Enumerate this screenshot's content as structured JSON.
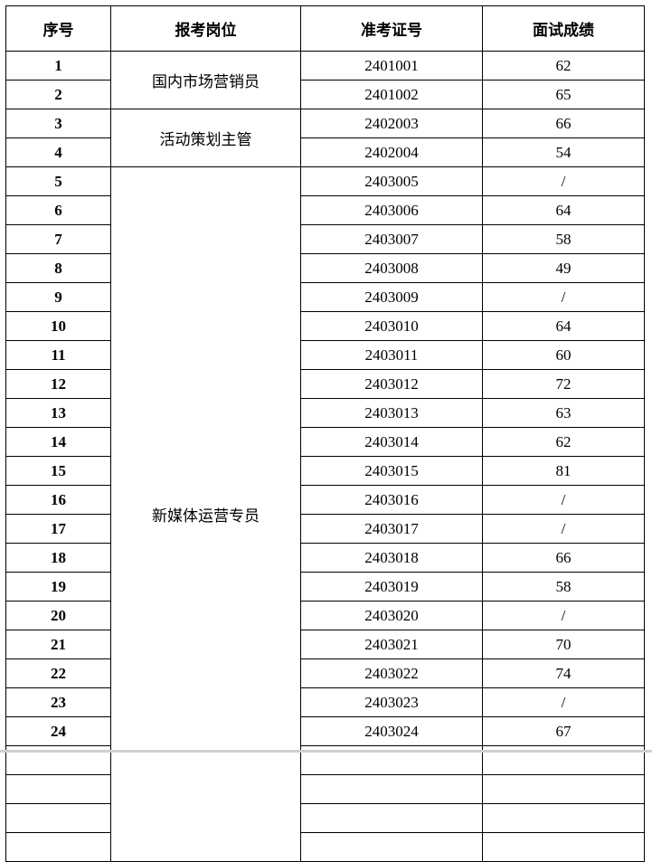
{
  "headers": [
    "序号",
    "报考岗位",
    "准考证号",
    "面试成绩"
  ],
  "positions": [
    {
      "name": "国内市场营销员",
      "rows": 2
    },
    {
      "name": "活动策划主管",
      "rows": 2
    },
    {
      "name": "新媒体运营专员",
      "rows": 20
    }
  ],
  "rows": [
    {
      "no": "1",
      "id": "2401001",
      "score": "62"
    },
    {
      "no": "2",
      "id": "2401002",
      "score": "65"
    },
    {
      "no": "3",
      "id": "2402003",
      "score": "66"
    },
    {
      "no": "4",
      "id": "2402004",
      "score": "54"
    },
    {
      "no": "5",
      "id": "2403005",
      "score": "/"
    },
    {
      "no": "6",
      "id": "2403006",
      "score": "64"
    },
    {
      "no": "7",
      "id": "2403007",
      "score": "58"
    },
    {
      "no": "8",
      "id": "2403008",
      "score": "49"
    },
    {
      "no": "9",
      "id": "2403009",
      "score": "/"
    },
    {
      "no": "10",
      "id": "2403010",
      "score": "64"
    },
    {
      "no": "11",
      "id": "2403011",
      "score": "60"
    },
    {
      "no": "12",
      "id": "2403012",
      "score": "72"
    },
    {
      "no": "13",
      "id": "2403013",
      "score": "63"
    },
    {
      "no": "14",
      "id": "2403014",
      "score": "62"
    },
    {
      "no": "15",
      "id": "2403015",
      "score": "81"
    },
    {
      "no": "16",
      "id": "2403016",
      "score": "/"
    },
    {
      "no": "17",
      "id": "2403017",
      "score": "/"
    },
    {
      "no": "18",
      "id": "2403018",
      "score": "66"
    },
    {
      "no": "19",
      "id": "2403019",
      "score": "58"
    },
    {
      "no": "20",
      "id": "2403020",
      "score": "/"
    },
    {
      "no": "21",
      "id": "2403021",
      "score": "70"
    },
    {
      "no": "22",
      "id": "2403022",
      "score": "74"
    },
    {
      "no": "23",
      "id": "2403023",
      "score": "/"
    },
    {
      "no": "24",
      "id": "2403024",
      "score": "67"
    }
  ]
}
